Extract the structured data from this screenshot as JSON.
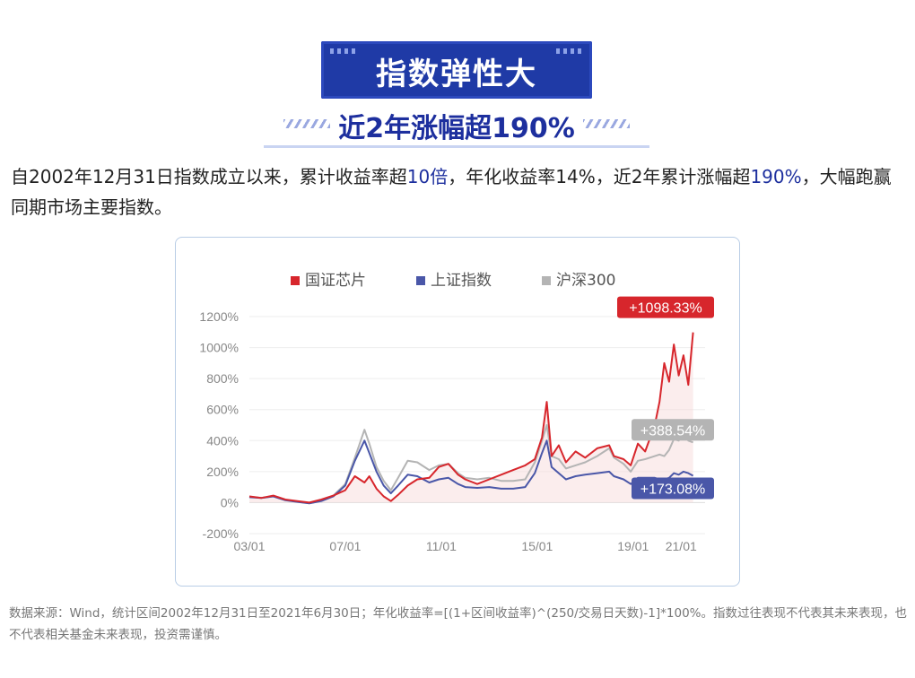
{
  "header": {
    "title": "指数弹性大",
    "subtitle": "近2年涨幅超190%"
  },
  "description": {
    "t1": "自2002年12月31日指数成立以来，累计收益率超",
    "h1": "10倍",
    "t2": "，年化收益率14%，近2年累计涨幅超",
    "h2": "190%",
    "t3": "，大幅跑赢同期市场主要指数。"
  },
  "footnote": "数据来源：Wind，统计区间2002年12月31日至2021年6月30日；年化收益率=[(1+区间收益率)^(250/交易日天数)-1]*100%。指数过往表现不代表其未来表现，也不代表相关基金未来表现，投资需谨慎。",
  "colors": {
    "accent": "#1d2f9e",
    "banner": "#1f3aa6",
    "series_red": "#d7262c",
    "series_blue": "#4a57a8",
    "series_gray": "#b4b4b4"
  },
  "chart_data": {
    "type": "line",
    "ylim": [
      -200,
      1200
    ],
    "y_ticks": [
      "1200%",
      "1000%",
      "800%",
      "600%",
      "400%",
      "200%",
      "0%",
      "-200%"
    ],
    "y_tick_values": [
      1200,
      1000,
      800,
      600,
      400,
      200,
      0,
      -200
    ],
    "x_ticks": [
      "03/01",
      "07/01",
      "11/01",
      "15/01",
      "19/01",
      "21/01"
    ],
    "x_tick_values": [
      2003.0,
      2007.0,
      2011.0,
      2015.0,
      2019.0,
      2021.0
    ],
    "xlim": [
      2003.0,
      2022.0
    ],
    "grid": "horizontal",
    "legend_position": "top",
    "series": [
      {
        "name": "国证芯片",
        "color": "#d7262c",
        "final_label": "+1098.33%",
        "points": [
          [
            2003.0,
            40
          ],
          [
            2003.5,
            30
          ],
          [
            2004.0,
            45
          ],
          [
            2004.5,
            20
          ],
          [
            2005.0,
            10
          ],
          [
            2005.5,
            0
          ],
          [
            2006.0,
            20
          ],
          [
            2006.5,
            45
          ],
          [
            2007.0,
            80
          ],
          [
            2007.4,
            170
          ],
          [
            2007.8,
            130
          ],
          [
            2008.0,
            170
          ],
          [
            2008.3,
            90
          ],
          [
            2008.6,
            40
          ],
          [
            2008.9,
            10
          ],
          [
            2009.2,
            50
          ],
          [
            2009.6,
            110
          ],
          [
            2010.0,
            150
          ],
          [
            2010.5,
            160
          ],
          [
            2010.9,
            230
          ],
          [
            2011.3,
            250
          ],
          [
            2011.7,
            180
          ],
          [
            2012.0,
            150
          ],
          [
            2012.5,
            120
          ],
          [
            2013.0,
            150
          ],
          [
            2013.5,
            180
          ],
          [
            2014.0,
            210
          ],
          [
            2014.5,
            240
          ],
          [
            2014.9,
            280
          ],
          [
            2015.2,
            420
          ],
          [
            2015.4,
            650
          ],
          [
            2015.6,
            300
          ],
          [
            2015.9,
            370
          ],
          [
            2016.2,
            260
          ],
          [
            2016.6,
            330
          ],
          [
            2017.0,
            290
          ],
          [
            2017.5,
            350
          ],
          [
            2018.0,
            370
          ],
          [
            2018.2,
            300
          ],
          [
            2018.6,
            280
          ],
          [
            2018.9,
            240
          ],
          [
            2019.2,
            380
          ],
          [
            2019.5,
            330
          ],
          [
            2019.9,
            500
          ],
          [
            2020.1,
            650
          ],
          [
            2020.3,
            900
          ],
          [
            2020.5,
            780
          ],
          [
            2020.7,
            1020
          ],
          [
            2020.9,
            820
          ],
          [
            2021.1,
            950
          ],
          [
            2021.3,
            760
          ],
          [
            2021.5,
            1098.33
          ]
        ]
      },
      {
        "name": "上证指数",
        "color": "#4a57a8",
        "final_label": "+173.08%",
        "points": [
          [
            2003.0,
            35
          ],
          [
            2003.5,
            30
          ],
          [
            2004.0,
            40
          ],
          [
            2004.5,
            15
          ],
          [
            2005.0,
            5
          ],
          [
            2005.5,
            -5
          ],
          [
            2006.0,
            10
          ],
          [
            2006.5,
            40
          ],
          [
            2007.0,
            110
          ],
          [
            2007.4,
            270
          ],
          [
            2007.8,
            400
          ],
          [
            2008.0,
            320
          ],
          [
            2008.3,
            200
          ],
          [
            2008.6,
            110
          ],
          [
            2008.9,
            60
          ],
          [
            2009.2,
            110
          ],
          [
            2009.6,
            180
          ],
          [
            2010.0,
            170
          ],
          [
            2010.5,
            130
          ],
          [
            2010.9,
            150
          ],
          [
            2011.3,
            160
          ],
          [
            2011.7,
            120
          ],
          [
            2012.0,
            100
          ],
          [
            2012.5,
            95
          ],
          [
            2013.0,
            100
          ],
          [
            2013.5,
            90
          ],
          [
            2014.0,
            90
          ],
          [
            2014.5,
            100
          ],
          [
            2014.9,
            190
          ],
          [
            2015.2,
            320
          ],
          [
            2015.4,
            400
          ],
          [
            2015.6,
            230
          ],
          [
            2015.9,
            190
          ],
          [
            2016.2,
            150
          ],
          [
            2016.6,
            170
          ],
          [
            2017.0,
            180
          ],
          [
            2017.5,
            190
          ],
          [
            2018.0,
            200
          ],
          [
            2018.2,
            170
          ],
          [
            2018.6,
            150
          ],
          [
            2018.9,
            120
          ],
          [
            2019.2,
            160
          ],
          [
            2019.5,
            160
          ],
          [
            2019.9,
            160
          ],
          [
            2020.1,
            150
          ],
          [
            2020.3,
            150
          ],
          [
            2020.5,
            160
          ],
          [
            2020.7,
            190
          ],
          [
            2020.9,
            180
          ],
          [
            2021.1,
            200
          ],
          [
            2021.3,
            190
          ],
          [
            2021.5,
            173.08
          ]
        ]
      },
      {
        "name": "沪深300",
        "color": "#b4b4b4",
        "final_label": "+388.54%",
        "points": [
          [
            2003.0,
            38
          ],
          [
            2003.5,
            30
          ],
          [
            2004.0,
            42
          ],
          [
            2004.5,
            18
          ],
          [
            2005.0,
            6
          ],
          [
            2005.5,
            -4
          ],
          [
            2006.0,
            12
          ],
          [
            2006.5,
            45
          ],
          [
            2007.0,
            120
          ],
          [
            2007.4,
            290
          ],
          [
            2007.8,
            470
          ],
          [
            2008.0,
            380
          ],
          [
            2008.3,
            230
          ],
          [
            2008.6,
            140
          ],
          [
            2008.9,
            80
          ],
          [
            2009.2,
            160
          ],
          [
            2009.6,
            270
          ],
          [
            2010.0,
            260
          ],
          [
            2010.5,
            210
          ],
          [
            2010.9,
            240
          ],
          [
            2011.3,
            250
          ],
          [
            2011.7,
            190
          ],
          [
            2012.0,
            160
          ],
          [
            2012.5,
            150
          ],
          [
            2013.0,
            160
          ],
          [
            2013.5,
            140
          ],
          [
            2014.0,
            140
          ],
          [
            2014.5,
            150
          ],
          [
            2014.9,
            260
          ],
          [
            2015.2,
            400
          ],
          [
            2015.4,
            500
          ],
          [
            2015.6,
            300
          ],
          [
            2015.9,
            280
          ],
          [
            2016.2,
            220
          ],
          [
            2016.6,
            240
          ],
          [
            2017.0,
            260
          ],
          [
            2017.5,
            300
          ],
          [
            2018.0,
            350
          ],
          [
            2018.2,
            290
          ],
          [
            2018.6,
            250
          ],
          [
            2018.9,
            200
          ],
          [
            2019.2,
            270
          ],
          [
            2019.5,
            280
          ],
          [
            2019.9,
            300
          ],
          [
            2020.1,
            310
          ],
          [
            2020.3,
            300
          ],
          [
            2020.5,
            340
          ],
          [
            2020.7,
            410
          ],
          [
            2020.9,
            400
          ],
          [
            2021.1,
            470
          ],
          [
            2021.3,
            400
          ],
          [
            2021.5,
            388.54
          ]
        ]
      }
    ]
  }
}
